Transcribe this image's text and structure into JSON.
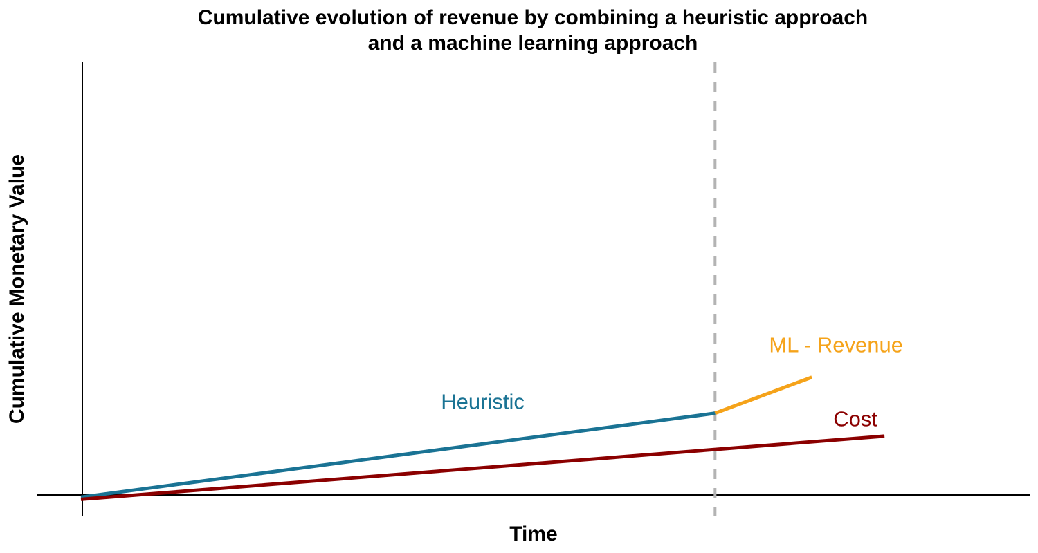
{
  "chart_data": {
    "type": "line",
    "title": [
      "Cumulative evolution of revenue by combining a heuristic approach",
      "and a machine learning approach"
    ],
    "xlabel": "Time",
    "ylabel": "Cumulative Monetary Value",
    "xlim": [
      -0.05,
      2.0
    ],
    "ylim": [
      -0.08,
      2.0
    ],
    "grid": false,
    "x_ticks_shown": false,
    "y_ticks_shown": false,
    "vertical_marker": {
      "x": 1.35,
      "style": "dashed",
      "color": "#b3b3b3"
    },
    "series": [
      {
        "name": "Heuristic",
        "color": "#1a7394",
        "points": [
          [
            0.04,
            0.005
          ],
          [
            1.35,
            0.39
          ]
        ],
        "label_at": [
          0.87,
          0.41
        ]
      },
      {
        "name": "ML - Revenue",
        "color": "#f5a31a",
        "points": [
          [
            1.35,
            0.39
          ],
          [
            1.55,
            0.555
          ]
        ],
        "label_at": [
          1.6,
          0.67
        ]
      },
      {
        "name": "Cost",
        "color": "#8b0000",
        "points": [
          [
            0.04,
            -0.005
          ],
          [
            1.7,
            0.285
          ]
        ],
        "label_at": [
          1.64,
          0.33
        ]
      }
    ]
  }
}
